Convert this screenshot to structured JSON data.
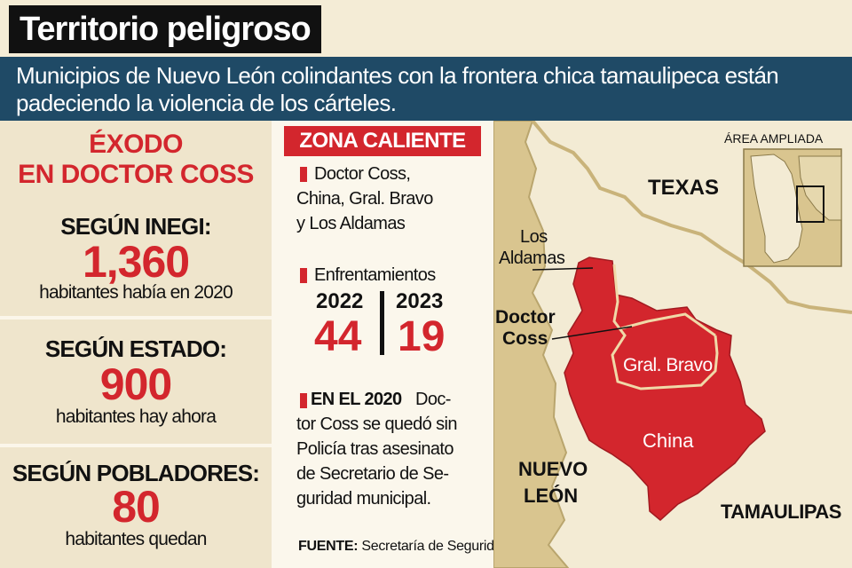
{
  "header": {
    "title": "Territorio peligroso",
    "subtitle": "Municipios de Nuevo León colindantes con la frontera chica tamaulipeca están padeciendo la violencia de los cárteles."
  },
  "left": {
    "heading_line1": "ÉXODO",
    "heading_line2": "EN DOCTOR COSS",
    "stats": [
      {
        "label": "SEGÚN INEGI:",
        "value": "1,360",
        "desc": "habitantes había en 2020"
      },
      {
        "label": "SEGÚN ESTADO:",
        "value": "900",
        "desc": "habitantes hay ahora"
      },
      {
        "label": "SEGÚN POBLADORES:",
        "value": "80",
        "desc": "habitantes quedan"
      }
    ]
  },
  "middle": {
    "zona_label": "ZONA CALIENTE",
    "municipalities_lines": [
      "Doctor Coss,",
      "China, Gral. Bravo",
      "y Los Aldamas"
    ],
    "enfrentamientos_label": "Enfrentamientos",
    "years": [
      "2022",
      "2023"
    ],
    "counts": [
      "44",
      "19"
    ],
    "note_bold": "EN EL 2020",
    "note_lines": [
      "Doc-",
      "tor Coss se quedó sin",
      "Policía tras asesinato",
      "de Secretario de Se-",
      "guridad municipal."
    ],
    "source_bold": "FUENTE:",
    "source_text": "Secretaría de Seguridad Pública"
  },
  "map": {
    "inset_label": "ÁREA AMPLIADA",
    "labels": {
      "texas": "TEXAS",
      "los_aldamas_1": "Los",
      "los_aldamas_2": "Aldamas",
      "doctor_coss_1": "Doctor",
      "doctor_coss_2": "Coss",
      "gral_bravo": "Gral. Bravo",
      "china": "China",
      "nuevo_leon_1": "NUEVO",
      "nuevo_leon_2": "LEÓN",
      "tamaulipas": "TAMAULIPAS"
    }
  },
  "colors": {
    "accent_red": "#d3262d",
    "header_blue": "#1f4a66",
    "title_black": "#111111",
    "panel_beige": "#efe5cc",
    "map_tan": "#d9c58f",
    "map_light": "#f3ebd4"
  }
}
